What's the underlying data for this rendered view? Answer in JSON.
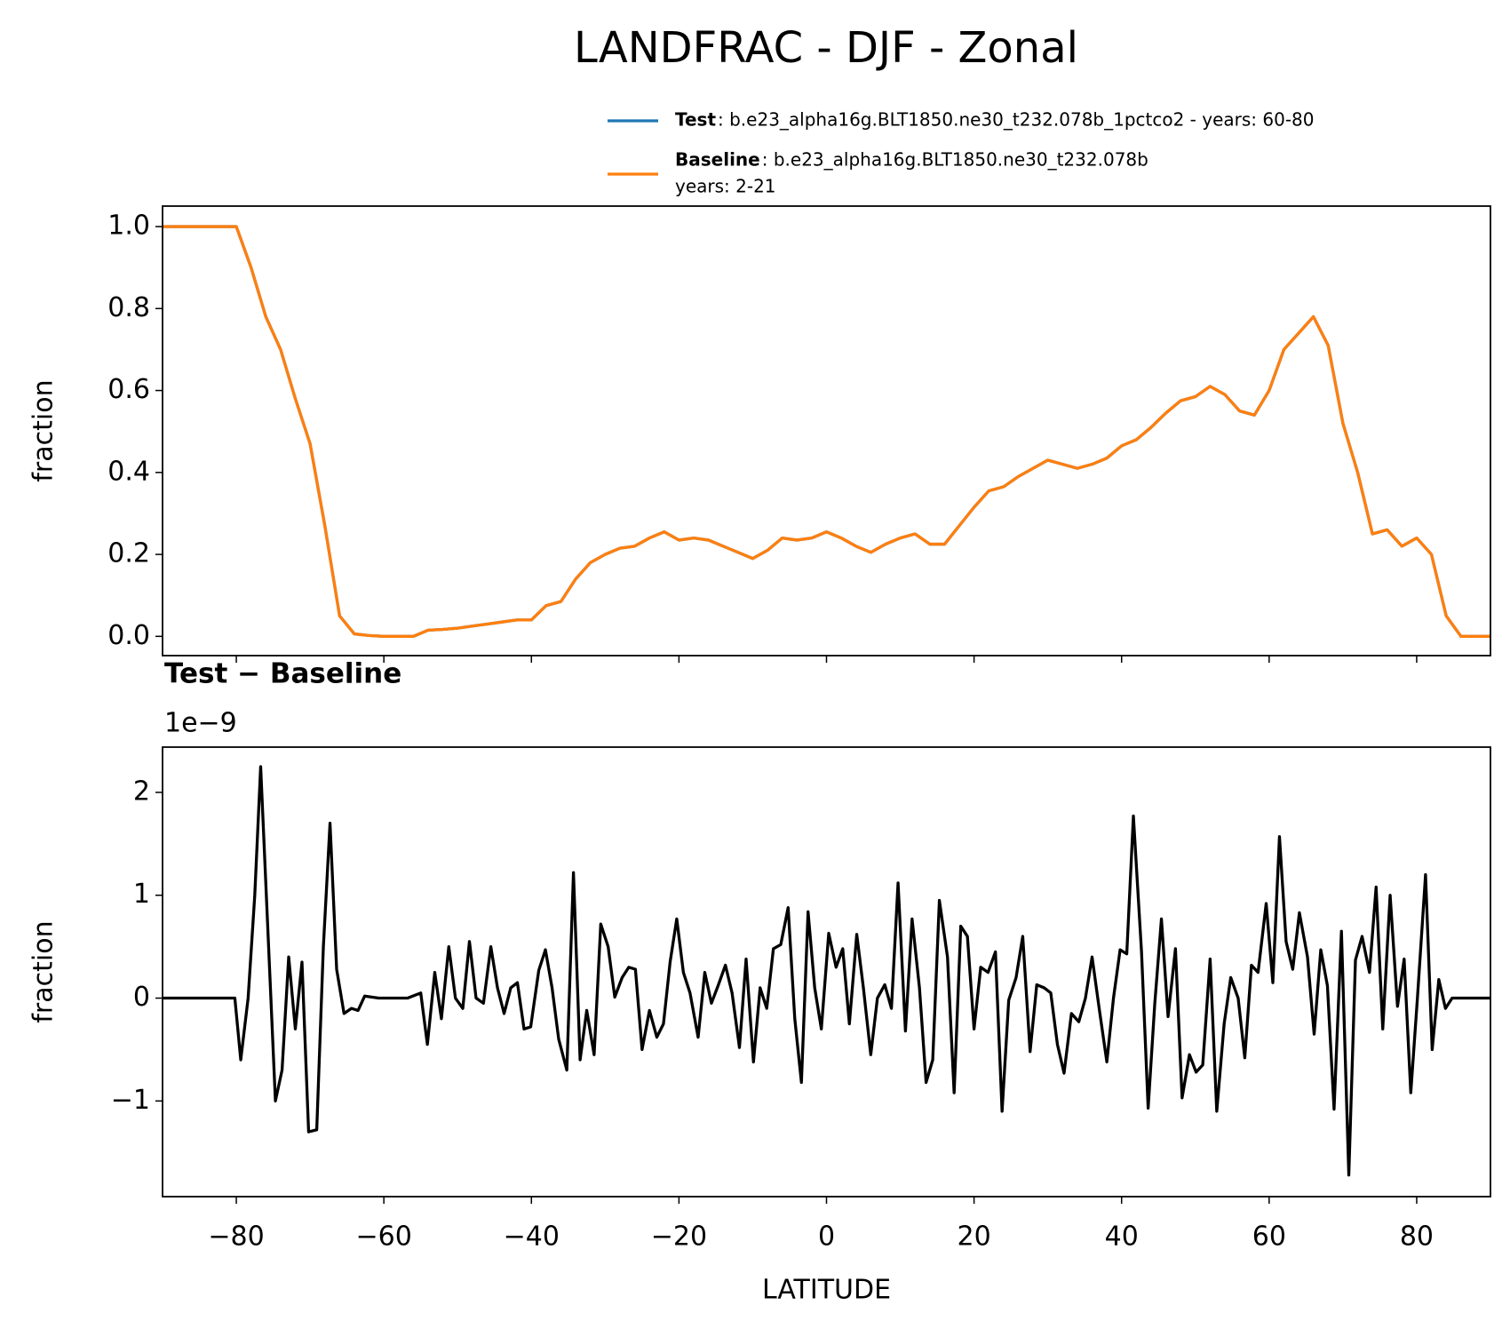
{
  "title": "LANDFRAC - DJF - Zonal",
  "chart_data": [
    {
      "type": "line",
      "ylabel": "fraction",
      "x": [
        -90,
        -88,
        -86,
        -84,
        -82,
        -80,
        -78,
        -76,
        -74,
        -72,
        -70,
        -68,
        -66,
        -64,
        -62,
        -60,
        -58,
        -56,
        -54,
        -52,
        -50,
        -48,
        -46,
        -44,
        -42,
        -40,
        -38,
        -36,
        -34,
        -32,
        -30,
        -28,
        -26,
        -24,
        -22,
        -20,
        -18,
        -16,
        -14,
        -12,
        -10,
        -8,
        -6,
        -4,
        -2,
        0,
        2,
        4,
        6,
        8,
        10,
        12,
        14,
        16,
        18,
        20,
        22,
        24,
        26,
        28,
        30,
        32,
        34,
        36,
        38,
        40,
        42,
        44,
        46,
        48,
        50,
        52,
        54,
        56,
        58,
        60,
        62,
        64,
        66,
        68,
        70,
        72,
        74,
        76,
        78,
        80,
        82,
        84,
        86,
        88,
        90
      ],
      "series": [
        {
          "name": "Test",
          "label_lines": [
            ": b.e23_alpha16g.BLT1850.ne30_t232.078b_1pctco2 - years: 60-80"
          ],
          "color": "#1f77b4",
          "values": [
            1,
            1,
            1,
            1,
            1,
            1,
            0.9,
            0.78,
            0.7,
            0.58,
            0.47,
            0.27,
            0.05,
            0.006,
            0.002,
            0,
            0,
            0,
            0.015,
            0.017,
            0.02,
            0.025,
            0.03,
            0.035,
            0.04,
            0.04,
            0.075,
            0.085,
            0.14,
            0.18,
            0.2,
            0.215,
            0.22,
            0.24,
            0.255,
            0.235,
            0.24,
            0.235,
            0.22,
            0.205,
            0.19,
            0.21,
            0.24,
            0.235,
            0.24,
            0.255,
            0.24,
            0.22,
            0.205,
            0.225,
            0.24,
            0.25,
            0.225,
            0.225,
            0.27,
            0.315,
            0.355,
            0.365,
            0.39,
            0.41,
            0.43,
            0.42,
            0.41,
            0.42,
            0.435,
            0.465,
            0.48,
            0.51,
            0.545,
            0.575,
            0.585,
            0.61,
            0.59,
            0.55,
            0.54,
            0.6,
            0.7,
            0.74,
            0.78,
            0.71,
            0.52,
            0.4,
            0.25,
            0.26,
            0.22,
            0.24,
            0.2,
            0.05,
            0,
            0,
            0
          ]
        },
        {
          "name": "Baseline",
          "label_lines": [
            ": b.e23_alpha16g.BLT1850.ne30_t232.078b",
            "years: 2-21"
          ],
          "color": "#ff7f0e",
          "values": [
            1,
            1,
            1,
            1,
            1,
            1,
            0.9,
            0.78,
            0.7,
            0.58,
            0.47,
            0.27,
            0.05,
            0.006,
            0.002,
            0,
            0,
            0,
            0.015,
            0.017,
            0.02,
            0.025,
            0.03,
            0.035,
            0.04,
            0.04,
            0.075,
            0.085,
            0.14,
            0.18,
            0.2,
            0.215,
            0.22,
            0.24,
            0.255,
            0.235,
            0.24,
            0.235,
            0.22,
            0.205,
            0.19,
            0.21,
            0.24,
            0.235,
            0.24,
            0.255,
            0.24,
            0.22,
            0.205,
            0.225,
            0.24,
            0.25,
            0.225,
            0.225,
            0.27,
            0.315,
            0.355,
            0.365,
            0.39,
            0.41,
            0.43,
            0.42,
            0.41,
            0.42,
            0.435,
            0.465,
            0.48,
            0.51,
            0.545,
            0.575,
            0.585,
            0.61,
            0.59,
            0.55,
            0.54,
            0.6,
            0.7,
            0.74,
            0.78,
            0.71,
            0.52,
            0.4,
            0.25,
            0.26,
            0.22,
            0.24,
            0.2,
            0.05,
            0,
            0,
            0
          ]
        }
      ],
      "xlim": [
        -90,
        90
      ],
      "ylim": [
        -0.047,
        1.05
      ],
      "xticks": [
        {
          "value": -80,
          "label": "−80"
        },
        {
          "value": -60,
          "label": "−60"
        },
        {
          "value": -40,
          "label": "−40"
        },
        {
          "value": -20,
          "label": "−20"
        },
        0,
        20,
        40,
        60,
        80
      ],
      "yticks": [
        {
          "value": 0,
          "label": "0.0"
        },
        0.2,
        0.4,
        0.6,
        0.8,
        {
          "value": 1,
          "label": "1.0"
        }
      ]
    },
    {
      "type": "line",
      "title": "Test − Baseline",
      "y_offset_label": "1e−9",
      "xlabel": "LATITUDE",
      "ylabel": "fraction",
      "x": [
        -90,
        -80.2,
        -79.4,
        -78.4,
        -77.5,
        -76.7,
        -74.7,
        -73.8,
        -72.9,
        -72.0,
        -71.1,
        -70.2,
        -69.1,
        -68.2,
        -67.3,
        -66.4,
        -65.4,
        -64.4,
        -63.5,
        -62.6,
        -60.7,
        -56.8,
        -55.0,
        -54.1,
        -53.1,
        -52.2,
        -51.2,
        -50.3,
        -49.3,
        -48.4,
        -47.5,
        -46.5,
        -45.5,
        -44.6,
        -43.7,
        -42.8,
        -41.9,
        -41.0,
        -40.1,
        -39.0,
        -38.1,
        -37.2,
        -36.3,
        -35.2,
        -34.3,
        -33.4,
        -32.5,
        -31.5,
        -30.6,
        -29.6,
        -28.7,
        -27.7,
        -26.8,
        -25.9,
        -25.0,
        -24.0,
        -23.0,
        -22.1,
        -21.2,
        -20.3,
        -19.4,
        -18.5,
        -17.4,
        -16.5,
        -15.6,
        -14.7,
        -13.7,
        -12.8,
        -11.8,
        -10.9,
        -9.9,
        -9.0,
        -8.1,
        -7.2,
        -6.2,
        -5.2,
        -4.3,
        -3.4,
        -2.5,
        -1.6,
        -0.7,
        0.3,
        1.3,
        2.2,
        3.1,
        4.1,
        5.0,
        6.0,
        6.9,
        7.9,
        8.8,
        9.7,
        10.7,
        11.6,
        12.6,
        13.5,
        14.4,
        15.3,
        16.4,
        17.3,
        18.2,
        19.1,
        20.0,
        20.9,
        21.9,
        22.9,
        23.8,
        24.7,
        25.7,
        26.6,
        27.6,
        28.5,
        29.5,
        30.4,
        31.3,
        32.2,
        33.2,
        34.2,
        35.1,
        36.0,
        37.0,
        38.0,
        38.9,
        39.8,
        40.7,
        41.6,
        42.7,
        43.6,
        44.5,
        45.4,
        46.3,
        47.3,
        48.2,
        49.2,
        50.1,
        51.0,
        52.0,
        52.9,
        53.9,
        54.8,
        55.8,
        56.7,
        57.6,
        58.5,
        59.6,
        60.5,
        61.4,
        62.3,
        63.2,
        64.1,
        65.2,
        66.1,
        67.0,
        67.9,
        68.8,
        69.8,
        70.8,
        71.7,
        72.6,
        73.6,
        74.5,
        75.4,
        76.4,
        77.4,
        78.3,
        79.2,
        80.1,
        81.2,
        82.1,
        83.0,
        83.9,
        84.8,
        90
      ],
      "series": [
        {
          "color": "#000000",
          "values": [
            0,
            0,
            -0.6,
            0,
            1.0,
            2.25,
            -1.0,
            -0.7,
            0.4,
            -0.3,
            0.35,
            -1.3,
            -1.28,
            0.5,
            1.7,
            0.28,
            -0.15,
            -0.1,
            -0.12,
            0.02,
            0,
            0,
            0.05,
            -0.45,
            0.25,
            -0.2,
            0.5,
            0,
            -0.1,
            0.55,
            0,
            -0.05,
            0.5,
            0.1,
            -0.15,
            0.1,
            0.15,
            -0.3,
            -0.28,
            0.27,
            0.47,
            0.1,
            -0.4,
            -0.7,
            1.22,
            -0.6,
            -0.12,
            -0.55,
            0.72,
            0.5,
            0.01,
            0.2,
            0.3,
            0.28,
            -0.5,
            -0.12,
            -0.38,
            -0.25,
            0.35,
            0.77,
            0.25,
            0.05,
            -0.38,
            0.25,
            -0.05,
            0.12,
            0.32,
            0.05,
            -0.48,
            0.38,
            -0.62,
            0.1,
            -0.1,
            0.48,
            0.52,
            0.88,
            -0.2,
            -0.82,
            0.84,
            0.1,
            -0.3,
            0.63,
            0.3,
            0.48,
            -0.25,
            0.62,
            0.1,
            -0.55,
            0,
            0.13,
            -0.1,
            1.12,
            -0.32,
            0.77,
            0.1,
            -0.82,
            -0.6,
            0.95,
            0.4,
            -0.92,
            0.7,
            0.6,
            -0.3,
            0.3,
            0.25,
            0.45,
            -1.1,
            -0.02,
            0.2,
            0.6,
            -0.52,
            0.13,
            0.1,
            0.05,
            -0.45,
            -0.73,
            -0.15,
            -0.23,
            0,
            0.4,
            -0.12,
            -0.62,
            0,
            0.47,
            0.43,
            1.77,
            0.45,
            -1.07,
            -0.05,
            0.77,
            -0.18,
            0.48,
            -0.97,
            -0.55,
            -0.72,
            -0.65,
            0.38,
            -1.1,
            -0.25,
            0.2,
            0,
            -0.58,
            0.32,
            0.25,
            0.92,
            0.15,
            1.57,
            0.55,
            0.28,
            0.83,
            0.4,
            -0.35,
            0.47,
            0.12,
            -1.08,
            0.65,
            -1.72,
            0.37,
            0.6,
            0.25,
            1.08,
            -0.3,
            1.0,
            -0.08,
            0.38,
            -0.92,
            0,
            1.2,
            -0.5,
            0.18,
            -0.1,
            0,
            0
          ]
        }
      ],
      "xlim": [
        -90,
        90
      ],
      "ylim": [
        -1.93,
        2.44
      ],
      "xticks": [
        {
          "value": -80,
          "label": "−80"
        },
        {
          "value": -60,
          "label": "−60"
        },
        {
          "value": -40,
          "label": "−40"
        },
        {
          "value": -20,
          "label": "−20"
        },
        0,
        20,
        40,
        60,
        80
      ],
      "yticks": [
        {
          "value": -1,
          "label": "−1"
        },
        0,
        1,
        2
      ]
    }
  ]
}
